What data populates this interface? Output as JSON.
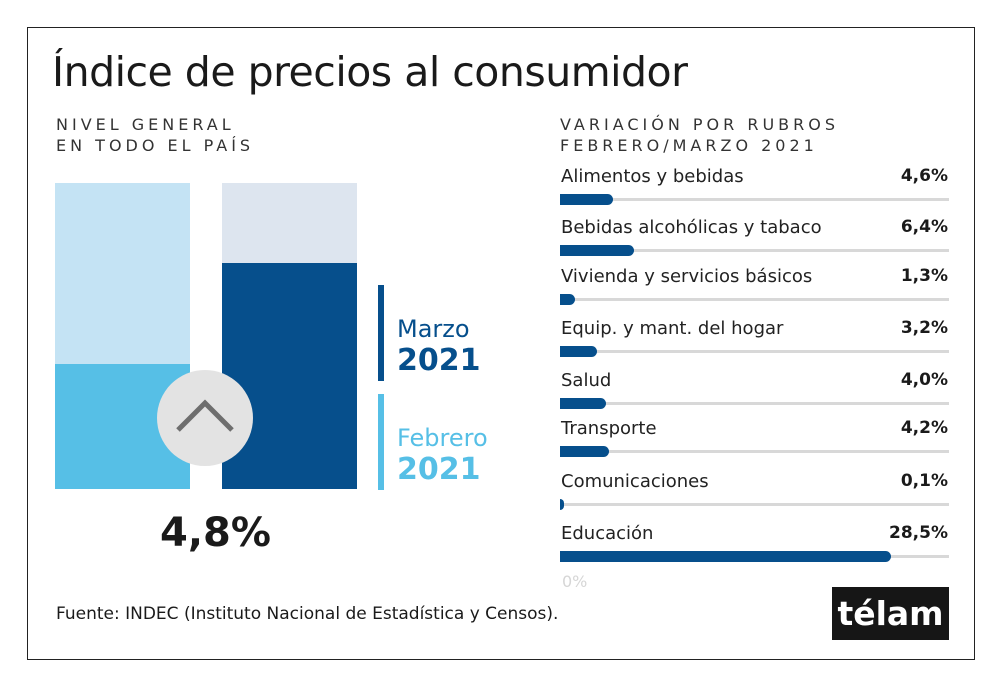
{
  "title": "Índice de precios al consumidor",
  "left_subtitle": [
    "NIVEL GENERAL",
    "EN TODO EL PAÍS"
  ],
  "right_subtitle": [
    "VARIACIÓN POR RUBROS",
    "FEBRERO/MARZO 2021"
  ],
  "chart_data": [
    {
      "type": "bar",
      "series": [
        {
          "name": "Febrero 2021",
          "color": "#56bfe6",
          "background_color": "#c4e3f4",
          "level_fraction": 0.41
        },
        {
          "name": "Marzo 2021",
          "color": "#064f8c",
          "background_color": "#dde5ef",
          "level_fraction": 0.74
        }
      ],
      "legend": [
        {
          "month": "Marzo",
          "year": "2021",
          "color": "#064f8c"
        },
        {
          "month": "Febrero",
          "year": "2021",
          "color": "#56bfe6"
        }
      ],
      "icon": "chevron-up-icon",
      "value_label": "4,8%"
    },
    {
      "type": "bar",
      "orientation": "horizontal",
      "xlim": [
        0,
        33.5
      ],
      "axis_label_start": "0%",
      "bar_color": "#064f8c",
      "categories": [
        "Alimentos y bebidas",
        "Bebidas alcohólicas y tabaco",
        "Vivienda y servicios básicos",
        "Equip. y mant. del hogar",
        "Salud",
        "Transporte",
        "Comunicaciones",
        "Educación"
      ],
      "values": [
        4.6,
        6.4,
        1.3,
        3.2,
        4.0,
        4.2,
        0.1,
        28.5
      ],
      "labels": [
        "4,6%",
        "6,4%",
        "1,3%",
        "3,2%",
        "4,0%",
        "4,2%",
        "0,1%",
        "28,5%"
      ]
    }
  ],
  "source": "Fuente: INDEC (Instituto Nacional de Estadística y Censos).",
  "logo": "télam"
}
